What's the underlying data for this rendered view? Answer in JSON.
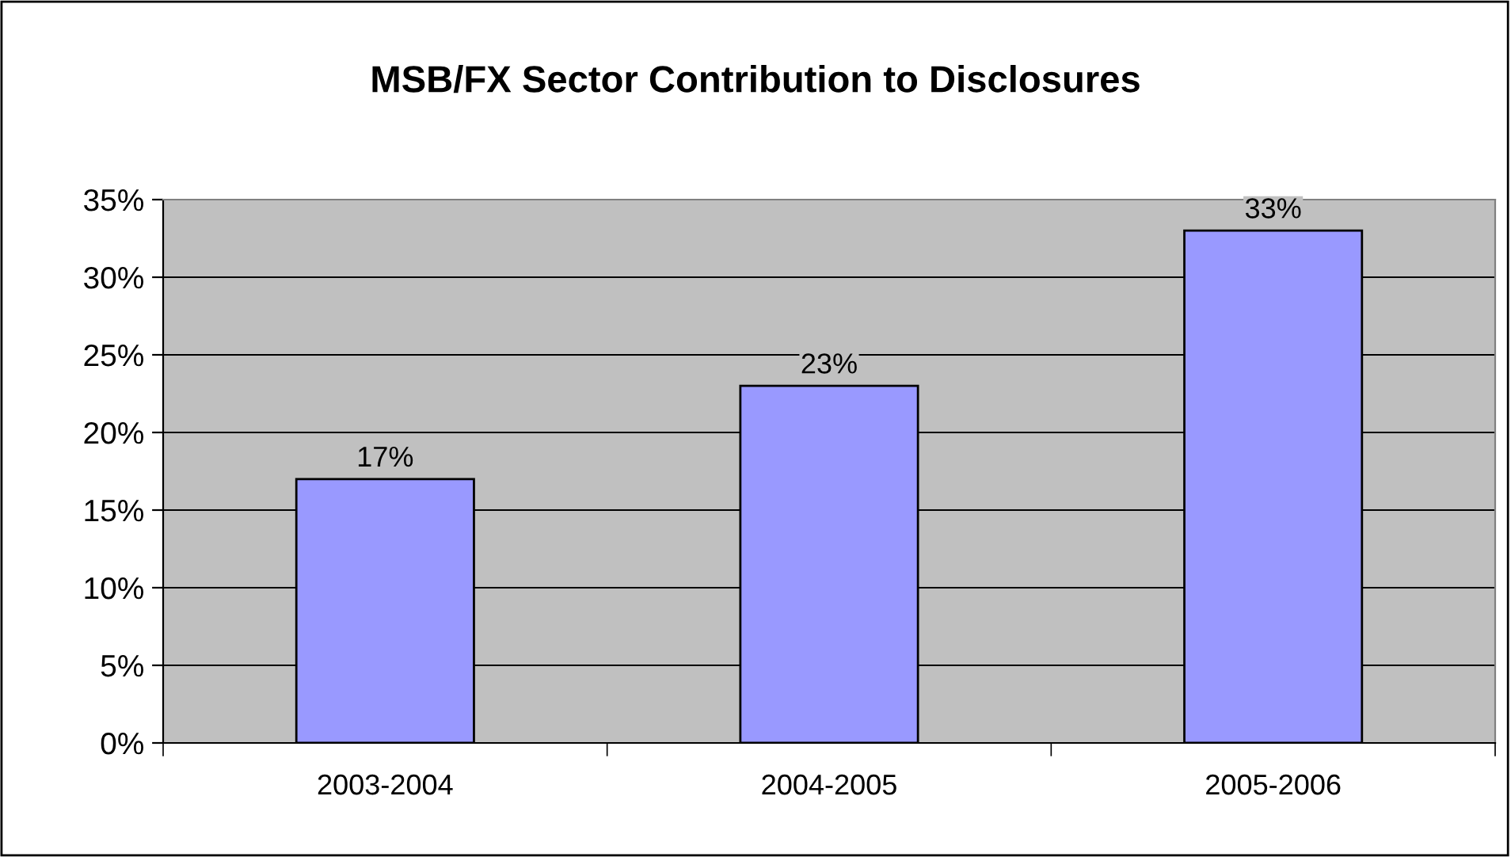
{
  "chart_data": {
    "type": "bar",
    "title": "MSB/FX Sector Contribution to Disclosures",
    "categories": [
      "2003-2004",
      "2004-2005",
      "2005-2006"
    ],
    "values": [
      17,
      23,
      33
    ],
    "color": "#9999ff",
    "value_labels": [
      "17%",
      "23%",
      "33%"
    ],
    "ylim": [
      0,
      35
    ],
    "yticks": [
      {
        "value": 0,
        "label": "0%"
      },
      {
        "value": 5,
        "label": "5%"
      },
      {
        "value": 10,
        "label": "10%"
      },
      {
        "value": 15,
        "label": "15%"
      },
      {
        "value": 20,
        "label": "20%"
      },
      {
        "value": 25,
        "label": "25%"
      },
      {
        "value": 30,
        "label": "30%"
      },
      {
        "value": 35,
        "label": "35%"
      }
    ],
    "grid": "y",
    "legend": false
  }
}
